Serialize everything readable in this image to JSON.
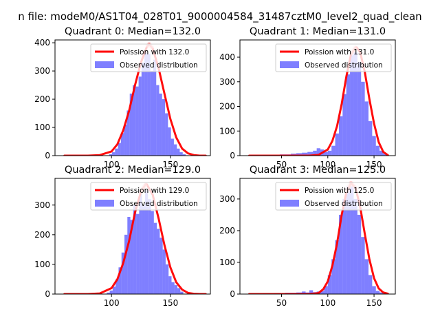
{
  "figure": {
    "suptitle": "n file: modeM0/AS1T04_028T01_9000004584_31487cztM0_level2_quad_clean"
  },
  "chart_data": [
    {
      "type": "bar",
      "title": "Quadrant 0: Median=132.0",
      "median": 132.0,
      "xlim": [
        52,
        184
      ],
      "ylim": [
        0,
        410
      ],
      "xticks": [
        100,
        150
      ],
      "yticks": [
        0,
        100,
        200,
        300,
        400
      ],
      "legend": [
        "Poission with 132.0",
        "Observed distribution"
      ],
      "legend_position": "top-right",
      "bin_edges": [
        98,
        100.5,
        103,
        105.5,
        108,
        110.5,
        113,
        115.5,
        118,
        120.5,
        123,
        125.5,
        128,
        130.5,
        133,
        135.5,
        138,
        140.5,
        143,
        145.5,
        148,
        150.5,
        153,
        155.5,
        158,
        160.5,
        163
      ],
      "hist": [
        5,
        12,
        25,
        45,
        80,
        110,
        160,
        220,
        250,
        245,
        280,
        330,
        370,
        360,
        300,
        340,
        250,
        220,
        200,
        150,
        100,
        60,
        40,
        25,
        12,
        5
      ],
      "poisson_x": [
        60,
        80,
        90,
        100,
        105,
        110,
        115,
        120,
        125,
        130,
        132,
        135,
        140,
        145,
        150,
        155,
        160,
        165,
        170,
        175,
        180
      ],
      "poisson_y": [
        0,
        0,
        2,
        15,
        40,
        90,
        160,
        250,
        330,
        385,
        395,
        380,
        310,
        220,
        130,
        65,
        25,
        8,
        2,
        0,
        0
      ]
    },
    {
      "type": "bar",
      "title": "Quadrant 1: Median=131.0",
      "median": 131.0,
      "xlim": [
        5,
        173
      ],
      "ylim": [
        0,
        470
      ],
      "xticks": [
        50,
        100,
        150
      ],
      "yticks": [
        0,
        100,
        200,
        300,
        400
      ],
      "legend": [
        "Poission with 131.0",
        "Observed distribution"
      ],
      "legend_position": "top-right",
      "bin_edges": [
        30,
        36,
        42,
        48,
        54,
        60,
        66,
        72,
        78,
        84,
        88,
        92,
        96,
        100,
        104,
        108,
        112,
        116,
        120,
        124,
        128,
        132,
        136,
        140,
        144,
        148,
        152,
        156,
        160,
        164
      ],
      "hist": [
        2,
        3,
        3,
        5,
        5,
        8,
        10,
        12,
        15,
        20,
        30,
        25,
        15,
        20,
        40,
        90,
        160,
        250,
        330,
        410,
        420,
        380,
        300,
        220,
        140,
        80,
        40,
        20,
        8
      ],
      "poisson_x": [
        15,
        40,
        60,
        80,
        90,
        100,
        105,
        110,
        115,
        120,
        125,
        130,
        131,
        135,
        140,
        145,
        150,
        155,
        160,
        165
      ],
      "poisson_y": [
        0,
        0,
        0,
        0,
        3,
        25,
        60,
        120,
        210,
        320,
        410,
        440,
        440,
        420,
        340,
        230,
        130,
        55,
        15,
        2
      ]
    },
    {
      "type": "bar",
      "title": "Quadrant 2: Median=129.0",
      "median": 129.0,
      "xlim": [
        52,
        184
      ],
      "ylim": [
        0,
        390
      ],
      "xticks": [
        100,
        150
      ],
      "yticks": [
        0,
        100,
        200,
        300
      ],
      "legend": [
        "Poission with 129.0",
        "Observed distribution"
      ],
      "legend_position": "top-right",
      "bin_edges": [
        96,
        98.5,
        101,
        103.5,
        106,
        108.5,
        111,
        113.5,
        116,
        118.5,
        121,
        123.5,
        126,
        128.5,
        131,
        133.5,
        136,
        138.5,
        141,
        143.5,
        146,
        148.5,
        151,
        153.5,
        156,
        158.5,
        161
      ],
      "hist": [
        5,
        12,
        25,
        50,
        90,
        140,
        200,
        260,
        250,
        300,
        270,
        340,
        300,
        350,
        320,
        280,
        240,
        220,
        190,
        150,
        100,
        60,
        40,
        30,
        20,
        8
      ],
      "poisson_x": [
        60,
        80,
        90,
        100,
        105,
        110,
        115,
        120,
        125,
        129,
        130,
        135,
        140,
        145,
        150,
        155,
        160,
        165,
        170,
        175,
        180
      ],
      "poisson_y": [
        0,
        0,
        2,
        20,
        50,
        105,
        180,
        275,
        345,
        370,
        370,
        335,
        255,
        165,
        90,
        40,
        15,
        4,
        1,
        0,
        0
      ]
    },
    {
      "type": "bar",
      "title": "Quadrant 3: Median=125.0",
      "median": 125.0,
      "xlim": [
        5,
        173
      ],
      "ylim": [
        0,
        365
      ],
      "xticks": [
        50,
        100,
        150
      ],
      "yticks": [
        0,
        100,
        200,
        300
      ],
      "legend": [
        "Poission with 125.0",
        "Observed distribution"
      ],
      "legend_position": "top-right",
      "bin_edges": [
        30,
        36,
        42,
        48,
        54,
        60,
        66,
        72,
        76,
        80,
        84,
        88,
        92,
        96,
        100,
        104,
        108,
        112,
        116,
        120,
        124,
        128,
        132,
        136,
        140,
        144,
        148,
        152,
        156,
        160
      ],
      "hist": [
        2,
        2,
        3,
        3,
        4,
        4,
        5,
        8,
        5,
        12,
        6,
        8,
        10,
        25,
        60,
        110,
        170,
        250,
        300,
        340,
        340,
        300,
        250,
        180,
        110,
        60,
        25,
        10,
        5
      ],
      "poisson_x": [
        15,
        40,
        60,
        80,
        90,
        95,
        100,
        105,
        110,
        115,
        120,
        125,
        130,
        135,
        140,
        145,
        150,
        155,
        160,
        165
      ],
      "poisson_y": [
        0,
        0,
        0,
        0,
        3,
        15,
        40,
        90,
        160,
        250,
        320,
        350,
        335,
        275,
        190,
        110,
        50,
        18,
        5,
        1
      ]
    }
  ]
}
